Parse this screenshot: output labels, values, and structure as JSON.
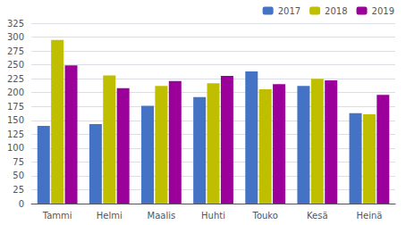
{
  "chart_data": {
    "type": "bar",
    "categories": [
      "Tammi",
      "Helmi",
      "Maalis",
      "Huhti",
      "Touko",
      "Kesä",
      "Heinä"
    ],
    "series": [
      {
        "name": "2017",
        "color": "#4472C4",
        "values": [
          140,
          143,
          176,
          192,
          238,
          212,
          163
        ]
      },
      {
        "name": "2018",
        "color": "#BFBF00",
        "values": [
          295,
          231,
          212,
          217,
          206,
          225,
          161
        ]
      },
      {
        "name": "2019",
        "color": "#9B009B",
        "values": [
          249,
          208,
          221,
          230,
          215,
          222,
          196
        ]
      }
    ],
    "ylim": [
      0,
      325
    ],
    "yticks": [
      0,
      25,
      50,
      75,
      100,
      125,
      150,
      175,
      200,
      225,
      250,
      275,
      300,
      325
    ],
    "grid": true,
    "legend": "upper-right"
  }
}
